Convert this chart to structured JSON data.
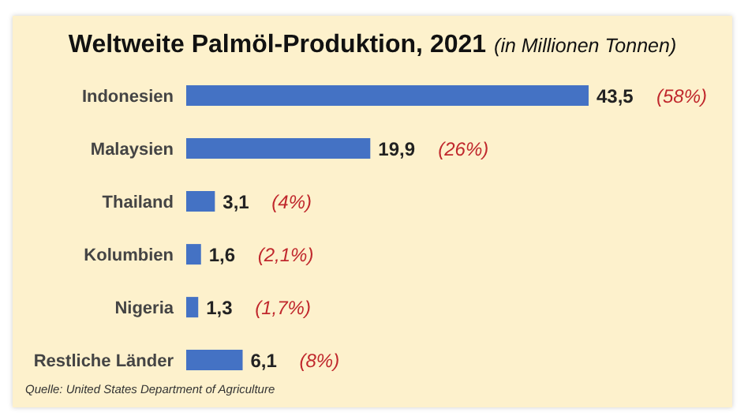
{
  "chart_data": {
    "type": "bar",
    "orientation": "horizontal",
    "title": "Weltweite Palmöl-Produktion, 2021",
    "subtitle": "(in Millionen Tonnen)",
    "categories": [
      "Indonesien",
      "Malaysien",
      "Thailand",
      "Kolumbien",
      "Nigeria",
      "Restliche Länder"
    ],
    "values": [
      43.5,
      19.9,
      3.1,
      1.6,
      1.3,
      6.1
    ],
    "value_labels": [
      "43,5",
      "19,9",
      "3,1",
      "1,6",
      "1,3",
      "6,1"
    ],
    "color": "#4472c4",
    "tick_labels": "y",
    "annotations": [
      "(58%)",
      "(26%)",
      "(4%)",
      "(2,1%)",
      "(1,7%)",
      "(8%)",
      "Quelle: United States Department of Agriculture"
    ]
  }
}
